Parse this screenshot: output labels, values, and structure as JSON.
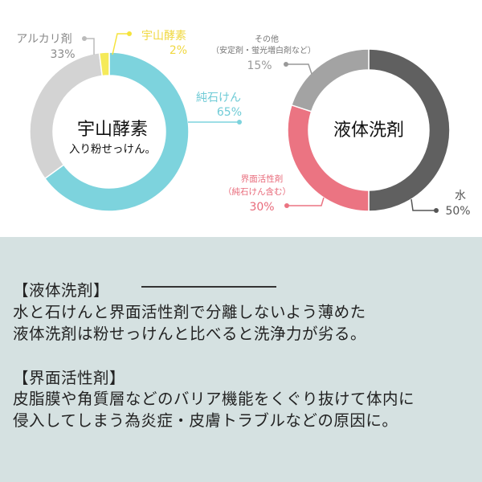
{
  "chart_data": [
    {
      "type": "pie",
      "variant": "donut",
      "center_title": "宇山酵素",
      "center_subtitle": "入り粉せっけん。",
      "slices": [
        {
          "label": "純石けん",
          "value": 65,
          "value_label": "65%",
          "color": "#7dd3dd"
        },
        {
          "label": "アルカリ剤",
          "value": 33,
          "value_label": "33%",
          "color": "#d3d3d3"
        },
        {
          "label": "宇山酵素",
          "value": 2,
          "value_label": "2%",
          "color": "#f5ea5a"
        }
      ],
      "label_colors": [
        "#7dd3dd",
        "#8a8a8a",
        "#f0d840"
      ]
    },
    {
      "type": "pie",
      "variant": "donut",
      "center_title": "液体洗剤",
      "slices": [
        {
          "label": "水",
          "value": 50,
          "value_label": "50%",
          "color": "#606060"
        },
        {
          "label": "界面活性剤",
          "sublabel": "（純石けん含む）",
          "value": 30,
          "value_label": "30%",
          "color": "#eb7482"
        },
        {
          "label": "その他",
          "sublabel": "（安定剤・蛍光増白剤など）",
          "value": 15,
          "value_label": "15%",
          "color": "#a3a3a3"
        }
      ],
      "label_colors": [
        "#555555",
        "#e86a7a",
        "#999999"
      ]
    }
  ],
  "notes": {
    "liquid_heading": "【液体洗剤】",
    "liquid_lines": [
      "水と石けんと界面活性剤で分離しないよう薄めた",
      "液体洗剤は粉せっけんと比べると洗浄力が劣る。"
    ],
    "surfactant_heading": "【界面活性剤】",
    "surfactant_lines": [
      "皮脂膜や角質層などのバリア機能をくぐり抜けて体内に",
      "侵入してしまう為炎症・皮膚トラブルなどの原因に。"
    ]
  }
}
